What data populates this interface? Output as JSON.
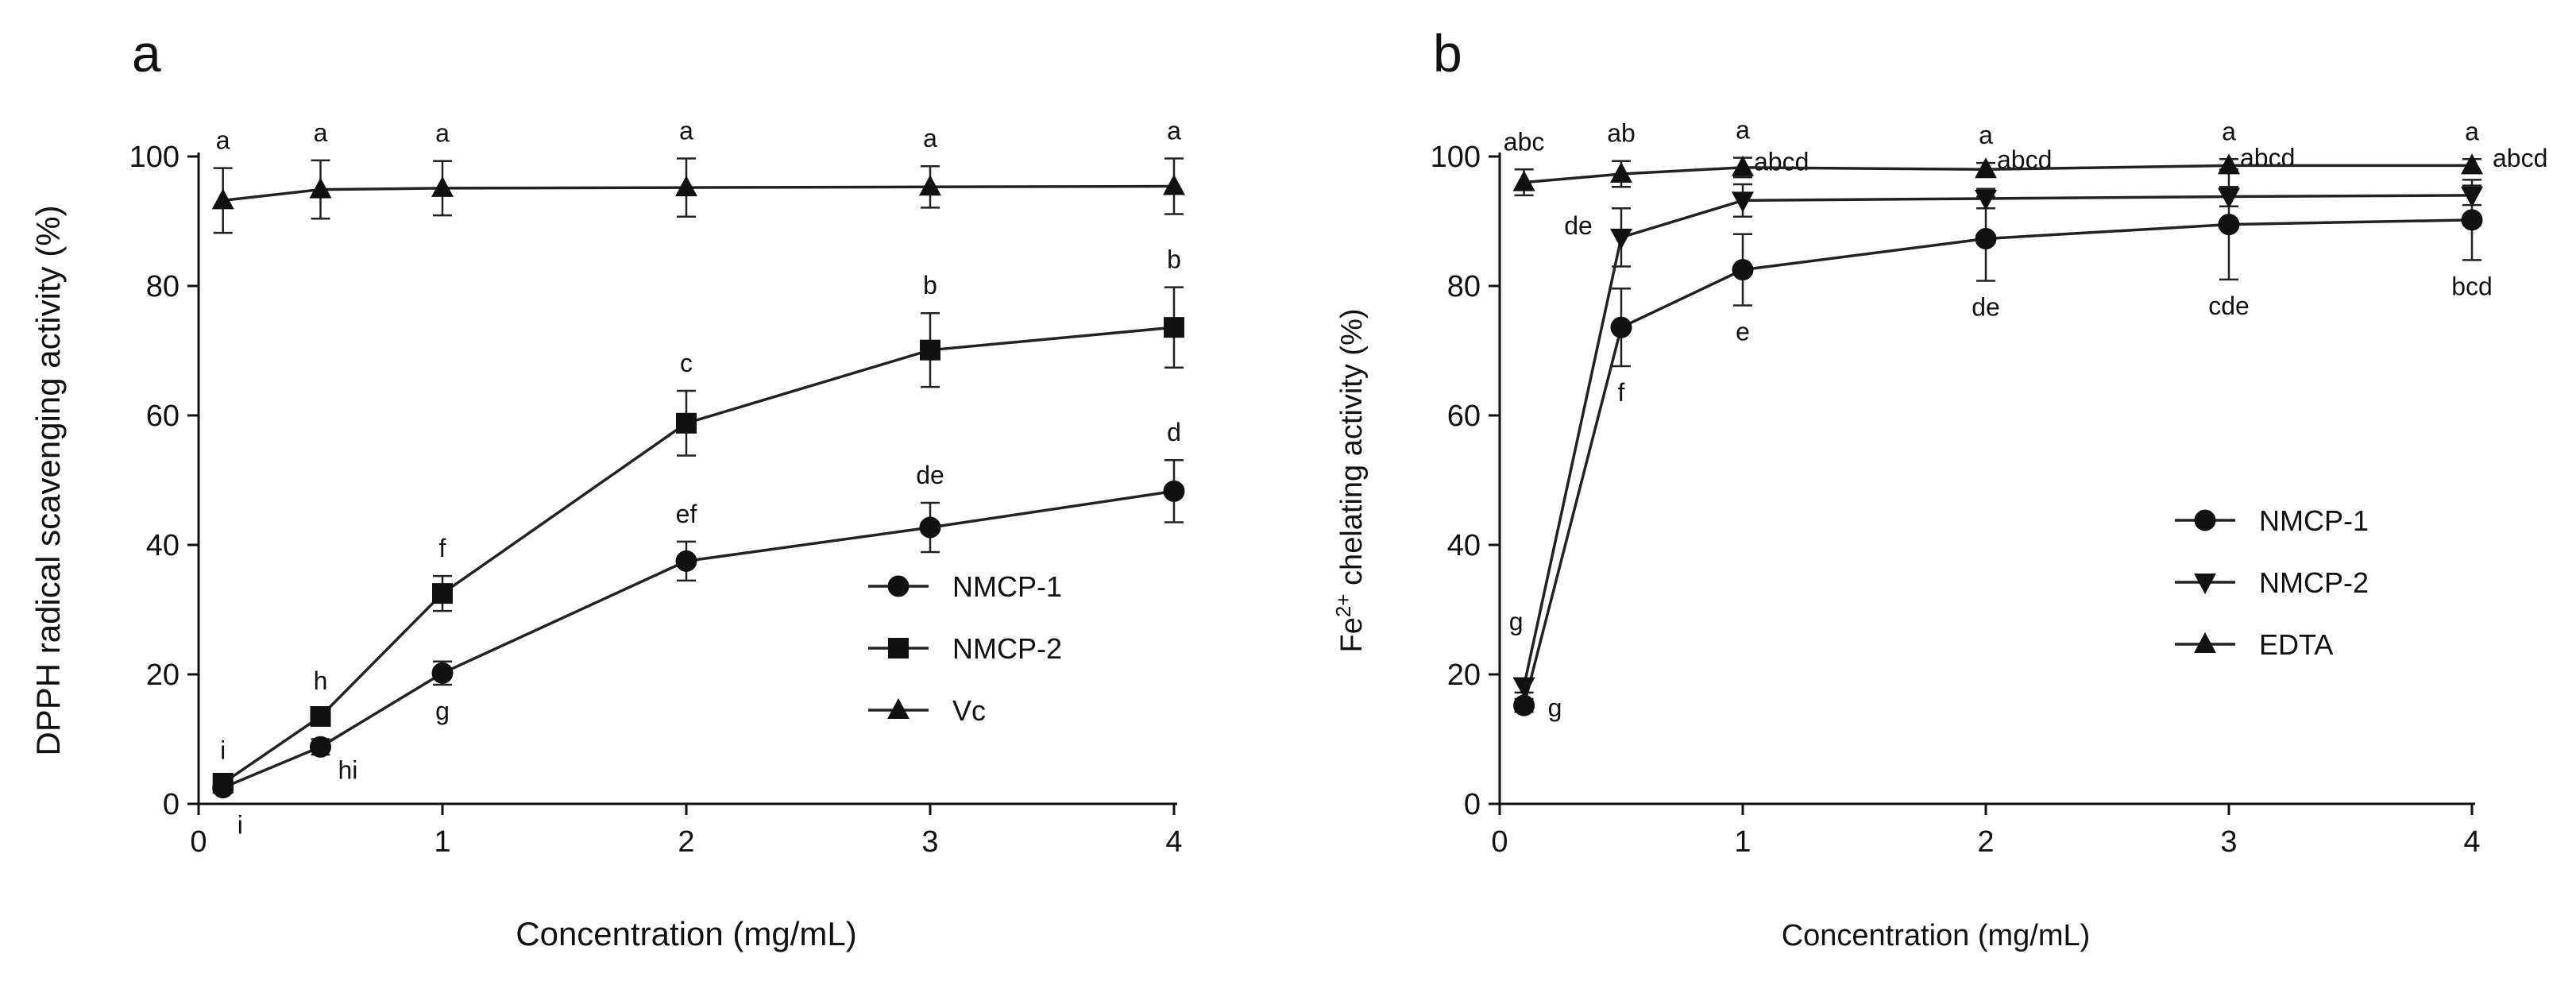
{
  "chart_data": [
    {
      "type": "line",
      "panel": "a",
      "xlabel": "Concentration (mg/mL)",
      "ylabel": "DPPH radical scavenging activity (%)",
      "xlim": [
        0,
        4
      ],
      "ylim": [
        0,
        100
      ],
      "xticks": [
        0,
        1,
        2,
        3,
        4
      ],
      "yticks": [
        0,
        20,
        40,
        60,
        80,
        100
      ],
      "grid": false,
      "legend_position": "right-middle",
      "series": [
        {
          "name": "NMCP-1",
          "marker": "circle",
          "x": [
            0.1,
            0.5,
            1,
            2,
            3,
            4
          ],
          "y": [
            2.5,
            8.8,
            20.2,
            37.5,
            42.7,
            48.3
          ],
          "err": [
            0.8,
            1.2,
            1.8,
            3,
            3.8,
            4.8
          ],
          "labels": [
            "i",
            "hi",
            "g",
            "ef",
            "de",
            "d"
          ]
        },
        {
          "name": "NMCP-2",
          "marker": "square",
          "x": [
            0.1,
            0.5,
            1,
            2,
            3,
            4
          ],
          "y": [
            3.2,
            13.5,
            32.5,
            58.8,
            70.1,
            73.6
          ],
          "err": [
            0.8,
            1.2,
            2.7,
            5,
            5.7,
            6.2
          ],
          "labels": [
            "i",
            "h",
            "f",
            "c",
            "b",
            "b"
          ]
        },
        {
          "name": "Vc",
          "marker": "triangle-up",
          "x": [
            0.1,
            0.5,
            1,
            2,
            3,
            4
          ],
          "y": [
            93.2,
            94.9,
            95.1,
            95.2,
            95.3,
            95.4
          ],
          "err": [
            5,
            4.5,
            4.2,
            4.5,
            3.2,
            4.3
          ],
          "labels": [
            "a",
            "a",
            "a",
            "a",
            "a",
            "a"
          ]
        }
      ]
    },
    {
      "type": "line",
      "panel": "b",
      "xlabel": "Concentration (mg/mL)",
      "ylabel_main": "Fe",
      "ylabel_sup": "2+",
      "ylabel_rest": " chelating activity (%)",
      "xlim": [
        0,
        4
      ],
      "ylim": [
        0,
        100
      ],
      "xticks": [
        0,
        1,
        2,
        3,
        4
      ],
      "yticks": [
        0,
        20,
        40,
        60,
        80,
        100
      ],
      "grid": false,
      "legend_position": "right-middle",
      "series": [
        {
          "name": "NMCP-1",
          "marker": "circle",
          "x": [
            0.1,
            0.5,
            1,
            2,
            3,
            4
          ],
          "y": [
            15.2,
            73.6,
            82.5,
            87.3,
            89.5,
            90.2
          ],
          "err": [
            1,
            6,
            5.5,
            6.5,
            8.5,
            6.2
          ],
          "labels": [
            "g",
            "f",
            "e",
            "de",
            "cde",
            "bcd"
          ]
        },
        {
          "name": "NMCP-2",
          "marker": "triangle-down",
          "x": [
            0.1,
            0.5,
            1,
            2,
            3,
            4
          ],
          "y": [
            18.2,
            87.5,
            93.2,
            93.5,
            93.8,
            94.0
          ],
          "err": [
            1,
            4.5,
            2.5,
            1.5,
            1.5,
            1.5
          ],
          "labels": [
            "g",
            "de",
            "abcd",
            "abcd",
            "abcd",
            "abcd"
          ]
        },
        {
          "name": "EDTA",
          "marker": "triangle-up",
          "x": [
            0.1,
            0.5,
            1,
            2,
            3,
            4
          ],
          "y": [
            96.0,
            97.3,
            98.3,
            98.0,
            98.6,
            98.6
          ],
          "err": [
            2,
            2,
            1.5,
            1,
            1,
            1
          ],
          "labels": [
            "abc",
            "ab",
            "a",
            "a",
            "a",
            "a"
          ]
        }
      ]
    }
  ]
}
